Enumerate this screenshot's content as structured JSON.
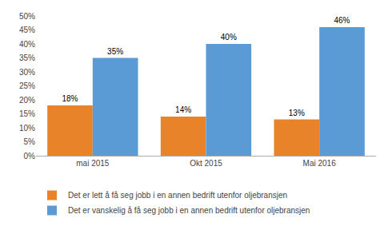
{
  "chart_data": {
    "type": "bar",
    "categories": [
      "mai 2015",
      "Okt 2015",
      "Mai 2016"
    ],
    "series": [
      {
        "name": "Det er lett å få seg jobb i en annen bedrift utenfor oljebransjen",
        "color": "#E8832A",
        "values": [
          0.18,
          0.14,
          0.13
        ],
        "value_labels": [
          "18%",
          "14%",
          "13%"
        ]
      },
      {
        "name": "Det er vanskelig å få seg jobb i en annen bedrift utenfor oljebransjen",
        "color": "#5B9BD5",
        "values": [
          0.35,
          0.4,
          0.46
        ],
        "value_labels": [
          "35%",
          "40%",
          "46%"
        ]
      }
    ],
    "ylim": [
      0,
      0.5
    ],
    "yticks": [
      {
        "value": 0.0,
        "label": "0%"
      },
      {
        "value": 0.05,
        "label": "5%"
      },
      {
        "value": 0.1,
        "label": "10%"
      },
      {
        "value": 0.15,
        "label": "15%"
      },
      {
        "value": 0.2,
        "label": "20%"
      },
      {
        "value": 0.25,
        "label": "25%"
      },
      {
        "value": 0.3,
        "label": "30%"
      },
      {
        "value": 0.35,
        "label": "35%"
      },
      {
        "value": 0.4,
        "label": "40%"
      },
      {
        "value": 0.45,
        "label": "45%"
      },
      {
        "value": 0.5,
        "label": "50%"
      }
    ],
    "data_labels": true,
    "grid": false,
    "legend": "bottom"
  }
}
